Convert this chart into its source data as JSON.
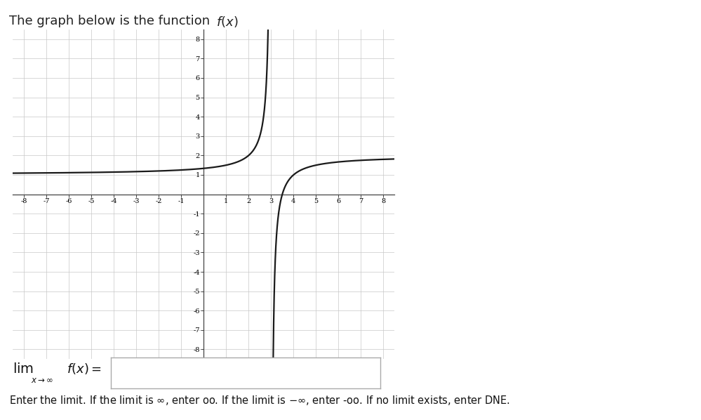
{
  "xlim": [
    -8.5,
    8.5
  ],
  "ylim": [
    -8.5,
    8.5
  ],
  "xticks": [
    -8,
    -7,
    -6,
    -5,
    -4,
    -3,
    -2,
    -1,
    1,
    2,
    3,
    4,
    5,
    6,
    7,
    8
  ],
  "yticks": [
    -8,
    -7,
    -6,
    -5,
    -4,
    -3,
    -2,
    -1,
    1,
    2,
    3,
    4,
    5,
    6,
    7,
    8
  ],
  "vertical_asymptote": 3,
  "curve_color": "#1a1a1a",
  "curve_linewidth": 1.6,
  "grid_color": "#c8c8c8",
  "grid_linewidth": 0.5,
  "axis_color": "#444444",
  "background_color": "#ffffff",
  "figure_title_plain": "The graph below is the function ",
  "figure_title_math": "$f(x)$",
  "instruction": "Enter the limit. If the limit is $\\infty$, enter oo. If the limit is $-\\infty$, enter -oo. If no limit exists, enter DNE."
}
